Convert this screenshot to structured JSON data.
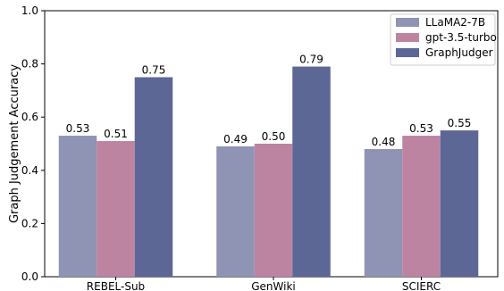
{
  "chart_data": {
    "type": "bar",
    "title": "",
    "xlabel": "",
    "ylabel": "Graph Judgement Accuracy",
    "ylim": [
      0.0,
      1.0
    ],
    "yticks": [
      "0.0",
      "0.2",
      "0.4",
      "0.6",
      "0.8",
      "1.0"
    ],
    "categories": [
      "REBEL-Sub",
      "GenWiki",
      "SCIERC"
    ],
    "series": [
      {
        "name": "LLaMA2-7B",
        "color": "#8f93b4",
        "values": [
          0.53,
          0.49,
          0.48
        ],
        "labels": [
          "0.53",
          "0.49",
          "0.48"
        ]
      },
      {
        "name": "gpt-3.5-turbo",
        "color": "#bd84a2",
        "values": [
          0.51,
          0.5,
          0.53
        ],
        "labels": [
          "0.51",
          "0.50",
          "0.53"
        ]
      },
      {
        "name": "GraphJudger",
        "color": "#5c6796",
        "values": [
          0.75,
          0.79,
          0.55
        ],
        "labels": [
          "0.75",
          "0.79",
          "0.55"
        ]
      }
    ],
    "grid": false,
    "legend": "top-right"
  }
}
